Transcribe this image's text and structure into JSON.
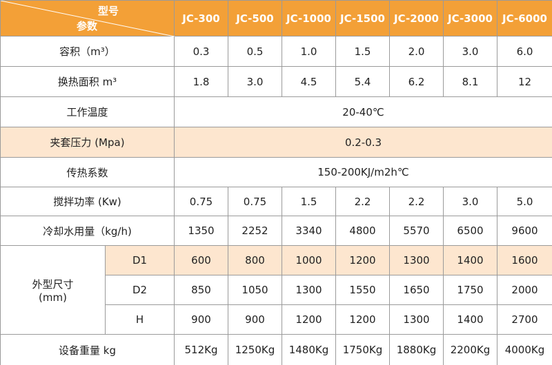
{
  "table": {
    "corner": {
      "top": "型号",
      "bottom": "参数"
    },
    "models": [
      "JC-300",
      "JC-500",
      "JC-1000",
      "JC-1500",
      "JC-2000",
      "JC-3000",
      "JC-6000"
    ],
    "rows": [
      {
        "label": "容积（m³）",
        "values": [
          "0.3",
          "0.5",
          "1.0",
          "1.5",
          "2.0",
          "3.0",
          "6.0"
        ]
      },
      {
        "label": "换热面积 m³",
        "values": [
          "1.8",
          "3.0",
          "4.5",
          "5.4",
          "6.2",
          "8.1",
          "12"
        ]
      },
      {
        "label": "工作温度",
        "value": "20-40℃"
      },
      {
        "label": "夹套压力 (Mpa)",
        "value": "0.2-0.3"
      },
      {
        "label": "传热系数",
        "value": "150-200KJ/m2h℃"
      },
      {
        "label": "搅拌功率 (Kw)",
        "values": [
          "0.75",
          "0.75",
          "1.5",
          "2.2",
          "2.2",
          "3.0",
          "5.0"
        ]
      },
      {
        "label": "冷却水用量（kg/h)",
        "values": [
          "1350",
          "2252",
          "3340",
          "4800",
          "5570",
          "6500",
          "9600"
        ]
      },
      {
        "label": [
          "外型尺寸",
          "(mm)"
        ],
        "subrows": [
          {
            "label": "D1",
            "values": [
              "600",
              "800",
              "1000",
              "1200",
              "1300",
              "1400",
              "1600"
            ]
          },
          {
            "label": "D2",
            "values": [
              "850",
              "1050",
              "1300",
              "1550",
              "1650",
              "1750",
              "2000"
            ]
          },
          {
            "label": "H",
            "values": [
              "900",
              "900",
              "1200",
              "1200",
              "1300",
              "1400",
              "2700"
            ]
          }
        ]
      },
      {
        "label": "设备重量 kg",
        "values": [
          "512Kg",
          "1250Kg",
          "1480Kg",
          "1750Kg",
          "1880Kg",
          "2200Kg",
          "4000Kg"
        ]
      }
    ]
  }
}
